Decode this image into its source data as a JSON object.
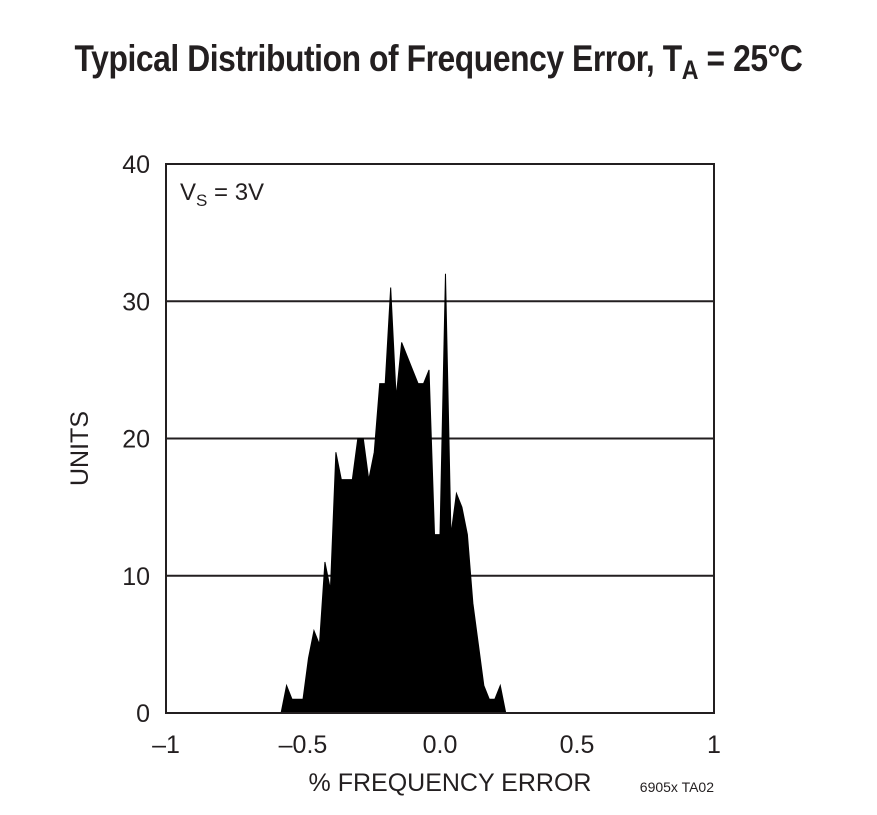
{
  "chart_data": {
    "type": "area",
    "title": "Typical Distribution of Frequency Error, T",
    "title_sub": "A",
    "title_suffix": " = 25°C",
    "xlabel": "% FREQUENCY ERROR",
    "ylabel": "UNITS",
    "annotation": {
      "main": "V",
      "sub": "S",
      "rest": " = 3V"
    },
    "figure_code": "6905x TA02",
    "xlim": [
      -1,
      1
    ],
    "ylim": [
      0,
      40
    ],
    "x_ticks": [
      -1,
      -0.5,
      0.0,
      0.5,
      1
    ],
    "x_tick_labels": [
      "–1",
      "–0.5",
      "0.0",
      "0.5",
      "1"
    ],
    "y_ticks": [
      0,
      10,
      20,
      30,
      40
    ],
    "y_tick_labels": [
      "0",
      "10",
      "20",
      "30",
      "40"
    ],
    "grid": "horizontal",
    "color": "#000000",
    "series": [
      {
        "x": [
          -0.6,
          -0.58,
          -0.56,
          -0.54,
          -0.52,
          -0.5,
          -0.48,
          -0.46,
          -0.44,
          -0.42,
          -0.4,
          -0.38,
          -0.36,
          -0.34,
          -0.32,
          -0.3,
          -0.28,
          -0.26,
          -0.24,
          -0.22,
          -0.2,
          -0.18,
          -0.16,
          -0.14,
          -0.12,
          -0.1,
          -0.08,
          -0.06,
          -0.04,
          -0.02,
          0.0,
          0.02,
          0.04,
          0.06,
          0.08,
          0.1,
          0.12,
          0.14,
          0.16,
          0.18,
          0.2,
          0.22,
          0.24,
          0.26,
          0.28,
          0.3,
          0.32,
          0.34,
          0.36,
          0.38,
          0.4,
          0.42,
          0.44,
          0.46,
          0.48,
          0.5,
          0.52
        ],
        "values": [
          0,
          0,
          2,
          1,
          1,
          1,
          4,
          6,
          5,
          11,
          9,
          19,
          17,
          17,
          17,
          20,
          20,
          17,
          19,
          24,
          24,
          31,
          23,
          27,
          26,
          25,
          24,
          24,
          25,
          13,
          13,
          32,
          13,
          16,
          15,
          13,
          8,
          5,
          2,
          1,
          1,
          2,
          0,
          0,
          0,
          0,
          0,
          0,
          0,
          0,
          0,
          0,
          0,
          0,
          0,
          0,
          0
        ]
      }
    ]
  }
}
